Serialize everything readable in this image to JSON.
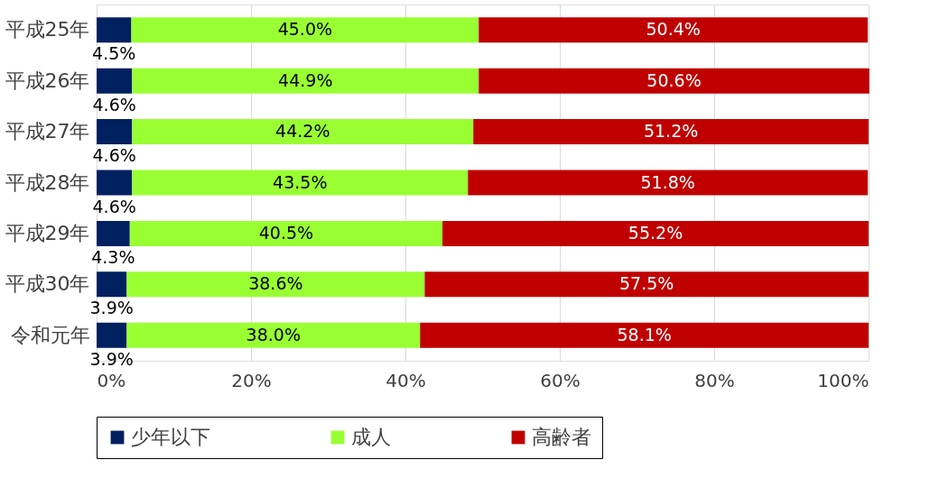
{
  "chart_data": {
    "type": "bar",
    "orientation": "horizontal",
    "stacked": true,
    "categories": [
      "平成25年",
      "平成26年",
      "平成27年",
      "平成28年",
      "平成29年",
      "平成30年",
      "令和元年"
    ],
    "series": [
      {
        "name": "少年以下",
        "color": "#002060",
        "values": [
          4.5,
          4.6,
          4.6,
          4.6,
          4.3,
          3.9,
          3.9
        ],
        "value_labels": [
          "4.5%",
          "4.6%",
          "4.6%",
          "4.6%",
          "4.3%",
          "3.9%",
          "3.9%"
        ]
      },
      {
        "name": "成人",
        "color": "#99ff33",
        "values": [
          45.0,
          44.9,
          44.2,
          43.5,
          40.5,
          38.6,
          38.0
        ],
        "value_labels": [
          "45.0%",
          "44.9%",
          "44.2%",
          "43.5%",
          "40.5%",
          "38.6%",
          "38.0%"
        ]
      },
      {
        "name": "高齢者",
        "color": "#c00000",
        "values": [
          50.4,
          50.6,
          51.2,
          51.8,
          55.2,
          57.5,
          58.1
        ],
        "value_labels": [
          "50.4%",
          "50.6%",
          "51.2%",
          "51.8%",
          "55.2%",
          "57.5%",
          "58.1%"
        ]
      }
    ],
    "xlim": [
      0,
      100
    ],
    "xticks": [
      {
        "value": 0,
        "label": "0%"
      },
      {
        "value": 20,
        "label": "20%"
      },
      {
        "value": 40,
        "label": "40%"
      },
      {
        "value": 60,
        "label": "60%"
      },
      {
        "value": 80,
        "label": "80%"
      },
      {
        "value": 100,
        "label": "100%"
      }
    ],
    "grid": "x",
    "legend": "bottom"
  }
}
